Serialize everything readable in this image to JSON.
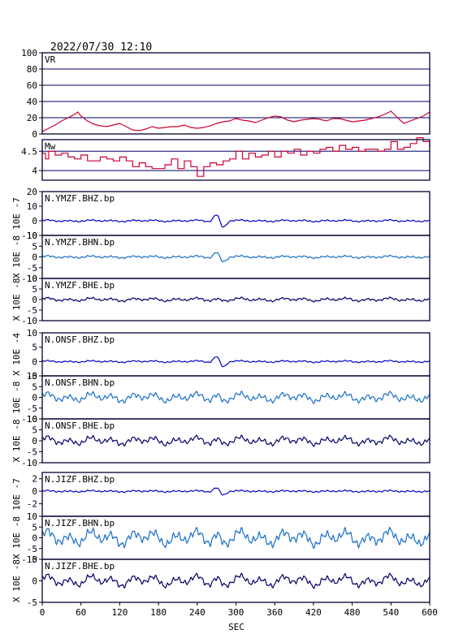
{
  "header": {
    "datetime": "2022/07/30 12:10"
  },
  "chart_data": {
    "type": "line",
    "xlabel": "SEC",
    "xlim": [
      0,
      600
    ],
    "xticks": [
      0,
      60,
      120,
      180,
      240,
      300,
      360,
      420,
      480,
      540,
      600
    ],
    "panels": [
      {
        "label": "VR",
        "ylabel": "",
        "ylim": [
          0,
          100
        ],
        "yticks": [
          0,
          20,
          40,
          60,
          80,
          100
        ],
        "grid": true,
        "color": "#cc0033",
        "style": "line",
        "x": [
          0,
          10,
          20,
          30,
          40,
          50,
          55,
          60,
          70,
          80,
          90,
          100,
          110,
          120,
          130,
          140,
          150,
          160,
          170,
          180,
          190,
          200,
          210,
          220,
          230,
          240,
          250,
          260,
          270,
          280,
          290,
          300,
          310,
          320,
          330,
          340,
          350,
          360,
          370,
          380,
          390,
          400,
          410,
          420,
          430,
          440,
          450,
          460,
          470,
          480,
          490,
          500,
          510,
          520,
          530,
          540,
          550,
          560,
          570,
          580,
          590,
          600
        ],
        "y": [
          3,
          7,
          11,
          16,
          20,
          24,
          27,
          22,
          16,
          12,
          10,
          9,
          11,
          13,
          9,
          5,
          4,
          6,
          9,
          7,
          8,
          9,
          9,
          11,
          8,
          7,
          8,
          10,
          13,
          15,
          16,
          19,
          17,
          16,
          14,
          17,
          20,
          22,
          21,
          17,
          15,
          17,
          18,
          19,
          18,
          16,
          19,
          19,
          17,
          15,
          16,
          17,
          19,
          21,
          24,
          28,
          20,
          13,
          16,
          19,
          22,
          27
        ]
      },
      {
        "label": "Mw",
        "ylabel": "",
        "ylim": [
          3.75,
          4.8
        ],
        "yticks": [
          4.0,
          4.5
        ],
        "grid": true,
        "color": "#cc0033",
        "style": "step",
        "x": [
          0,
          5,
          10,
          20,
          30,
          40,
          50,
          60,
          70,
          80,
          90,
          100,
          110,
          120,
          130,
          140,
          150,
          160,
          170,
          180,
          190,
          200,
          210,
          220,
          230,
          240,
          250,
          260,
          270,
          280,
          290,
          300,
          310,
          320,
          330,
          340,
          350,
          360,
          370,
          380,
          390,
          400,
          410,
          420,
          430,
          440,
          450,
          460,
          470,
          480,
          490,
          500,
          510,
          520,
          530,
          540,
          550,
          560,
          570,
          580,
          590,
          600
        ],
        "y": [
          4.45,
          4.3,
          4.5,
          4.4,
          4.45,
          4.35,
          4.3,
          4.4,
          4.25,
          4.25,
          4.35,
          4.3,
          4.25,
          4.35,
          4.25,
          4.1,
          4.2,
          4.1,
          4.05,
          4.05,
          4.15,
          4.3,
          4.05,
          4.25,
          4.1,
          3.85,
          4.1,
          4.2,
          4.15,
          4.25,
          4.3,
          4.5,
          4.3,
          4.45,
          4.35,
          4.4,
          4.5,
          4.35,
          4.5,
          4.45,
          4.55,
          4.4,
          4.5,
          4.45,
          4.55,
          4.6,
          4.5,
          4.65,
          4.55,
          4.6,
          4.5,
          4.55,
          4.55,
          4.5,
          4.55,
          4.75,
          4.55,
          4.6,
          4.7,
          4.85,
          4.75,
          4.6
        ]
      },
      {
        "label": "N.YMZF.BHZ.bp",
        "ylabel": "10E -7",
        "ylim": [
          -10,
          20
        ],
        "yticks": [
          -10,
          0,
          10,
          20
        ],
        "color": "#0000cc",
        "amp": 0.6,
        "pulse": 6,
        "noise": [
          0.3,
          0.12
        ]
      },
      {
        "label": "N.YMZF.BHN.bp",
        "ylabel": "X 10E -8",
        "ylim": [
          -10,
          10
        ],
        "yticks": [
          -10,
          -5,
          0,
          5,
          10
        ],
        "color": "#1a6fc7",
        "amp": 0.5,
        "pulse": 3,
        "noise": [
          0.25,
          0.15
        ]
      },
      {
        "label": "N.YMZF.BHE.bp",
        "ylabel": "X 10E -8",
        "ylim": [
          -10,
          10
        ],
        "yticks": [
          -10,
          -5,
          0,
          5,
          10
        ],
        "color": "#000066",
        "amp": 0.8,
        "pulse": 0.4,
        "noise": [
          0.3,
          0.2
        ]
      },
      {
        "label": "N.ONSF.BHZ.bp",
        "ylabel": "X 10E -4",
        "ylim": [
          -5,
          10
        ],
        "yticks": [
          -5,
          0,
          5,
          10
        ],
        "color": "#0000cc",
        "amp": 0.3,
        "pulse": 2.5,
        "noise": [
          0.15,
          0.05
        ]
      },
      {
        "label": "N.ONSF.BHN.bp",
        "ylabel": "10E -8",
        "ylim": [
          -10,
          10
        ],
        "yticks": [
          -10,
          -5,
          0,
          5,
          10
        ],
        "color": "#1a6fc7",
        "amp": 2.0,
        "pulse": 1.5,
        "noise": [
          0.8,
          0.3
        ]
      },
      {
        "label": "N.ONSF.BHE.bp",
        "ylabel": "X 10E -8",
        "ylim": [
          -10,
          10
        ],
        "yticks": [
          -10,
          -5,
          0,
          5,
          10
        ],
        "color": "#000066",
        "amp": 1.8,
        "pulse": 1.0,
        "noise": [
          0.7,
          0.3
        ]
      },
      {
        "label": "N.JIZF.BHZ.bp",
        "ylabel": "10E -7",
        "ylim": [
          -4,
          3
        ],
        "yticks": [
          -2,
          0,
          2
        ],
        "color": "#0000cc",
        "amp": 0.12,
        "pulse": 0.8,
        "noise": [
          0.08,
          0.03
        ]
      },
      {
        "label": "N.JIZF.BHN.bp",
        "ylabel": "X 10E -8",
        "ylim": [
          -10,
          10
        ],
        "yticks": [
          -10,
          -5,
          0,
          5,
          10
        ],
        "color": "#1a6fc7",
        "amp": 3.5,
        "pulse": 2.0,
        "noise": [
          1.2,
          0.6
        ]
      },
      {
        "label": "N.JIZF.BHE.bp",
        "ylabel": "X 10E -8",
        "ylim": [
          -5,
          5
        ],
        "yticks": [
          -5,
          0,
          5
        ],
        "color": "#000066",
        "amp": 1.3,
        "pulse": 0.8,
        "noise": [
          0.4,
          0.2
        ]
      }
    ]
  }
}
